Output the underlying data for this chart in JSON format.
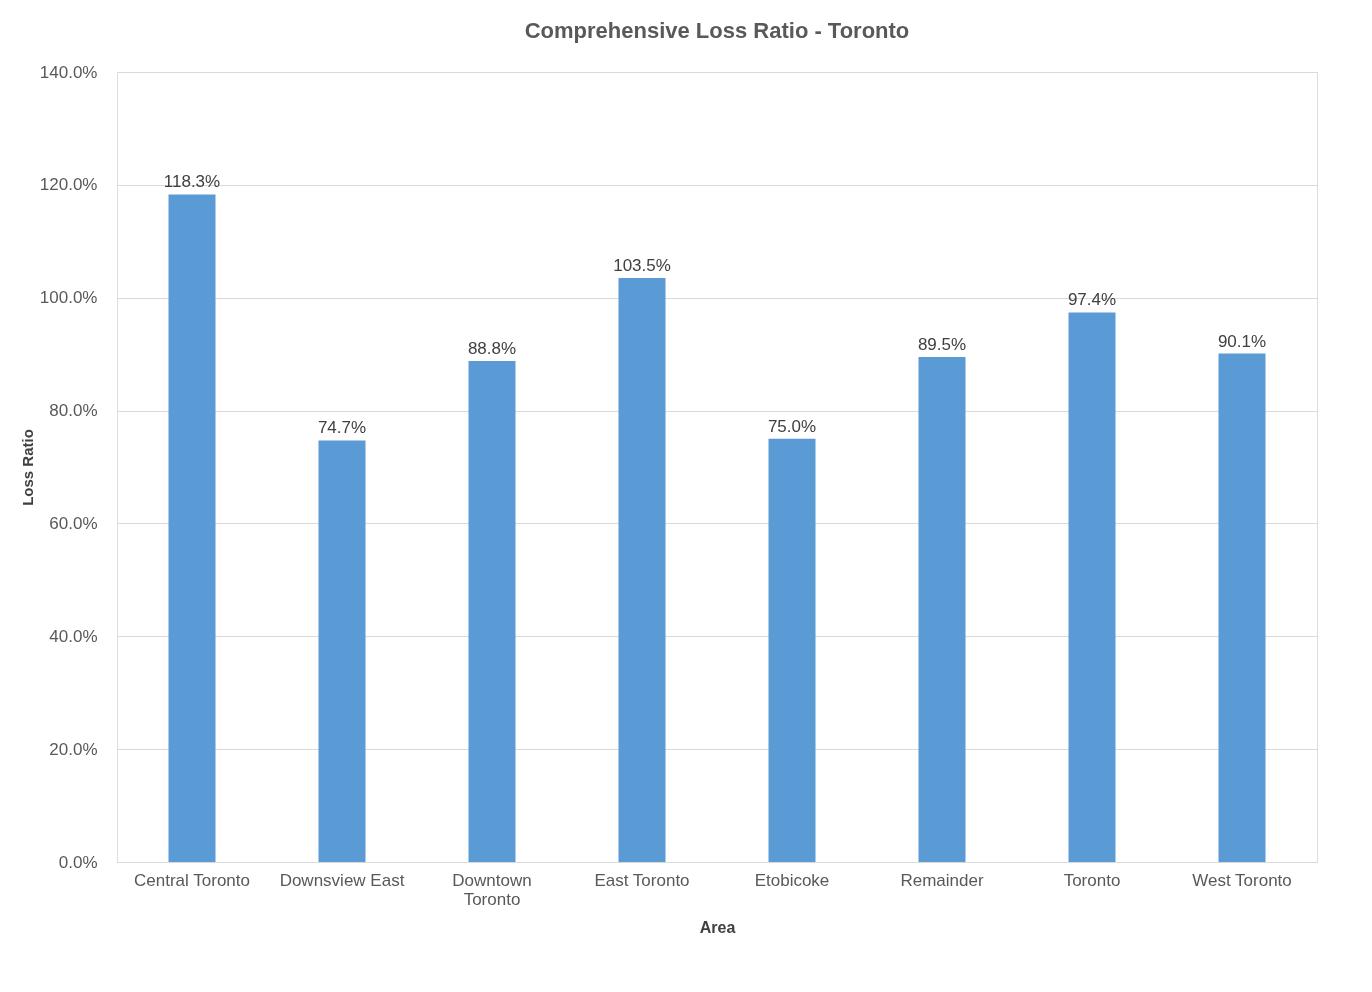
{
  "chart_data": {
    "type": "bar",
    "title": "Comprehensive Loss Ratio - Toronto",
    "xlabel": "Area",
    "ylabel": "Loss Ratio",
    "categories": [
      "Central Toronto",
      "Downsview East",
      "Downtown Toronto",
      "East Toronto",
      "Etobicoke",
      "Remainder",
      "Toronto",
      "West Toronto"
    ],
    "values": [
      118.3,
      74.7,
      88.8,
      103.5,
      75.0,
      89.5,
      97.4,
      90.1
    ],
    "value_labels": [
      "118.3%",
      "74.7%",
      "88.8%",
      "103.5%",
      "75.0%",
      "89.5%",
      "97.4%",
      "90.1%"
    ],
    "color": "#5b9bd5",
    "ylim": [
      0,
      140
    ],
    "yticks": [
      {
        "value": 0,
        "label": "0.0%"
      },
      {
        "value": 20,
        "label": "20.0%"
      },
      {
        "value": 40,
        "label": "40.0%"
      },
      {
        "value": 60,
        "label": "60.0%"
      },
      {
        "value": 80,
        "label": "80.0%"
      },
      {
        "value": 100,
        "label": "100.0%"
      },
      {
        "value": 120,
        "label": "120.0%"
      },
      {
        "value": 140,
        "label": "140.0%"
      }
    ],
    "grid": "y"
  }
}
